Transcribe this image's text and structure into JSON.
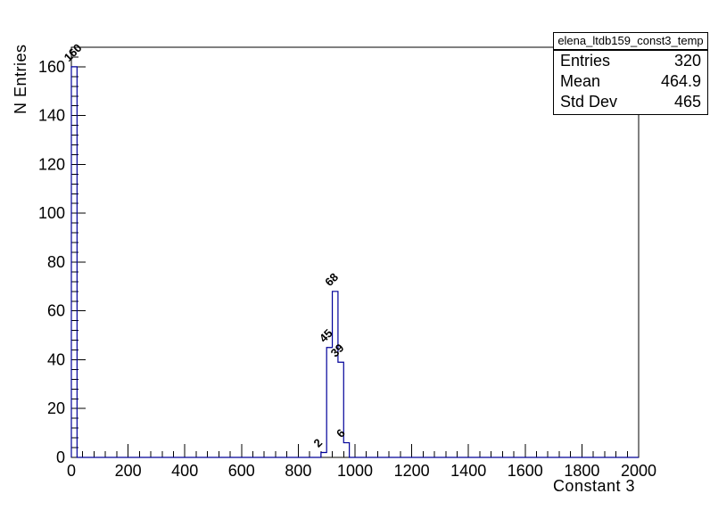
{
  "chart_data": {
    "type": "histogram",
    "title_box": "elena_ltdb159_const3_temp",
    "xlabel": "Constant 3",
    "ylabel": "N Entries",
    "x_range": [
      0,
      2000
    ],
    "y_range": [
      0,
      168
    ],
    "x_major_ticks": [
      0,
      200,
      400,
      600,
      800,
      1000,
      1200,
      1400,
      1600,
      1800,
      2000
    ],
    "x_minor_step": 40,
    "y_major_ticks": [
      0,
      20,
      40,
      60,
      80,
      100,
      120,
      140,
      160
    ],
    "y_minor_step": 4,
    "grid": false,
    "line_color": "#000099",
    "frame_color": "#000000",
    "text_color": "#000000",
    "background_color": "#ffffff",
    "bins": [
      {
        "x_low": 0,
        "x_high": 20,
        "count": 160
      },
      {
        "x_low": 880,
        "x_high": 900,
        "count": 2
      },
      {
        "x_low": 900,
        "x_high": 920,
        "count": 45
      },
      {
        "x_low": 920,
        "x_high": 940,
        "count": 68
      },
      {
        "x_low": 940,
        "x_high": 960,
        "count": 39
      },
      {
        "x_low": 960,
        "x_high": 980,
        "count": 6
      }
    ],
    "bin_label_rotation_deg": -45,
    "stats_box": {
      "rows": [
        {
          "label": "Entries",
          "value": "320"
        },
        {
          "label": "Mean",
          "value": "464.9"
        },
        {
          "label": "Std Dev",
          "value": "465"
        }
      ]
    }
  }
}
